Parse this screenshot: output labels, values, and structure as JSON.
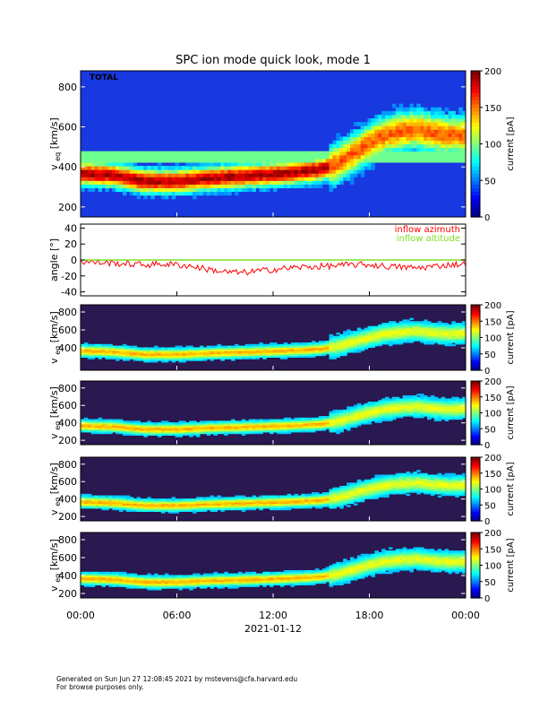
{
  "chart_data": {
    "type": "heatmap",
    "title": "SPC ion mode quick look, mode 1",
    "date": "2021-01-12",
    "x_tick_labels": [
      "00:00",
      "06:00",
      "12:00",
      "18:00",
      "00:00"
    ],
    "x_range_hours": [
      0,
      24
    ],
    "colors": {
      "line_azimuth": "#ff0000",
      "line_altitude": "#80e020"
    },
    "panels": [
      {
        "kind": "spectrogram",
        "label": "TOTAL",
        "ylabel": "v_eq [km/s]",
        "ylabel_main": "v",
        "ylabel_sub": "eq",
        "ylabel_unit": "[km/s]",
        "ylim": [
          150,
          880
        ],
        "yticks": [
          "200",
          "400",
          "600",
          "800"
        ],
        "colorbar": {
          "label": "current [pA]",
          "ticks": [
            "0",
            "50",
            "100",
            "150",
            "200"
          ],
          "range": [
            0,
            200
          ],
          "background": "blue"
        },
        "beam_center_kms": [
          [
            0,
            370
          ],
          [
            2,
            360
          ],
          [
            4,
            330
          ],
          [
            6,
            330
          ],
          [
            8,
            345
          ],
          [
            10,
            355
          ],
          [
            12,
            365
          ],
          [
            14,
            380
          ],
          [
            15,
            390
          ],
          [
            16,
            420
          ],
          [
            17,
            470
          ],
          [
            18,
            520
          ],
          [
            19,
            560
          ],
          [
            20,
            580
          ],
          [
            21,
            590
          ],
          [
            22,
            570
          ],
          [
            23,
            560
          ],
          [
            24,
            565
          ]
        ]
      },
      {
        "kind": "line",
        "ylabel": "angle [°]",
        "ylim": [
          -45,
          45
        ],
        "yticks": [
          "-40",
          "-20",
          "0",
          "20",
          "40"
        ],
        "legend": [
          "inflow azimuth",
          "inflow altitude"
        ],
        "legend_position": "top-right",
        "series": [
          {
            "name": "inflow azimuth",
            "x_hours": [
              0,
              1,
              2,
              3,
              4,
              5,
              6,
              7,
              8,
              9,
              10,
              11,
              12,
              13,
              14,
              15,
              16,
              17,
              18,
              19,
              20,
              21,
              22,
              23,
              24
            ],
            "values": [
              -2,
              -3,
              -4,
              -5,
              -6,
              -5,
              -6,
              -8,
              -12,
              -15,
              -16,
              -14,
              -12,
              -10,
              -9,
              -8,
              -7,
              -6,
              -6,
              -8,
              -9,
              -10,
              -8,
              -6,
              -5
            ]
          },
          {
            "name": "inflow altitude",
            "x_hours": [
              0,
              6,
              12,
              18,
              24
            ],
            "values": [
              0,
              0,
              0,
              0,
              0
            ]
          }
        ]
      },
      {
        "kind": "spectrogram",
        "ylabel": "v_eq [km/s]",
        "ylabel_main": "v",
        "ylabel_sub": "eq",
        "ylabel_unit": "[km/s]",
        "ylim": [
          150,
          880
        ],
        "yticks": [
          "400",
          "600",
          "800"
        ],
        "colorbar": {
          "label": "current [pA]",
          "ticks": [
            "0",
            "50",
            "100",
            "150",
            "200"
          ],
          "range": [
            0,
            200
          ],
          "background": "dark"
        },
        "beam_center_kms": [
          [
            0,
            370
          ],
          [
            2,
            360
          ],
          [
            4,
            330
          ],
          [
            6,
            330
          ],
          [
            8,
            345
          ],
          [
            10,
            355
          ],
          [
            12,
            365
          ],
          [
            14,
            380
          ],
          [
            15,
            390
          ],
          [
            16,
            420
          ],
          [
            17,
            470
          ],
          [
            18,
            520
          ],
          [
            19,
            560
          ],
          [
            20,
            580
          ],
          [
            21,
            590
          ],
          [
            22,
            570
          ],
          [
            23,
            560
          ],
          [
            24,
            565
          ]
        ]
      },
      {
        "kind": "spectrogram",
        "ylabel": "v_eq [km/s]",
        "ylabel_main": "v",
        "ylabel_sub": "eq",
        "ylabel_unit": "[km/s]",
        "ylim": [
          150,
          880
        ],
        "yticks": [
          "200",
          "400",
          "600",
          "800"
        ],
        "colorbar": {
          "label": "current [pA]",
          "ticks": [
            "0",
            "50",
            "100",
            "150",
            "200"
          ],
          "range": [
            0,
            200
          ],
          "background": "dark"
        },
        "beam_center_kms": [
          [
            0,
            370
          ],
          [
            2,
            360
          ],
          [
            4,
            330
          ],
          [
            6,
            330
          ],
          [
            8,
            345
          ],
          [
            10,
            355
          ],
          [
            12,
            365
          ],
          [
            14,
            380
          ],
          [
            15,
            390
          ],
          [
            16,
            420
          ],
          [
            17,
            470
          ],
          [
            18,
            520
          ],
          [
            19,
            560
          ],
          [
            20,
            580
          ],
          [
            21,
            590
          ],
          [
            22,
            570
          ],
          [
            23,
            560
          ],
          [
            24,
            565
          ]
        ]
      },
      {
        "kind": "spectrogram",
        "ylabel": "v_eq [km/s]",
        "ylabel_main": "v",
        "ylabel_sub": "eq",
        "ylabel_unit": "[km/s]",
        "ylim": [
          150,
          880
        ],
        "yticks": [
          "200",
          "400",
          "600",
          "800"
        ],
        "colorbar": {
          "label": "current [pA]",
          "ticks": [
            "0",
            "50",
            "100",
            "150",
            "200"
          ],
          "range": [
            0,
            200
          ],
          "background": "dark"
        },
        "beam_center_kms": [
          [
            0,
            370
          ],
          [
            2,
            360
          ],
          [
            4,
            330
          ],
          [
            6,
            330
          ],
          [
            8,
            345
          ],
          [
            10,
            355
          ],
          [
            12,
            365
          ],
          [
            14,
            380
          ],
          [
            15,
            390
          ],
          [
            16,
            420
          ],
          [
            17,
            470
          ],
          [
            18,
            520
          ],
          [
            19,
            560
          ],
          [
            20,
            580
          ],
          [
            21,
            590
          ],
          [
            22,
            570
          ],
          [
            23,
            560
          ],
          [
            24,
            565
          ]
        ]
      },
      {
        "kind": "spectrogram",
        "ylabel": "v_eq [km/s]",
        "ylabel_main": "v",
        "ylabel_sub": "eq",
        "ylabel_unit": "[km/s]",
        "ylim": [
          150,
          880
        ],
        "yticks": [
          "200",
          "400",
          "600",
          "800"
        ],
        "colorbar": {
          "label": "current [pA]",
          "ticks": [
            "0",
            "50",
            "100",
            "150",
            "200"
          ],
          "range": [
            0,
            200
          ],
          "background": "dark"
        },
        "beam_center_kms": [
          [
            0,
            370
          ],
          [
            2,
            360
          ],
          [
            4,
            330
          ],
          [
            6,
            330
          ],
          [
            8,
            345
          ],
          [
            10,
            355
          ],
          [
            12,
            365
          ],
          [
            14,
            380
          ],
          [
            15,
            390
          ],
          [
            16,
            420
          ],
          [
            17,
            470
          ],
          [
            18,
            520
          ],
          [
            19,
            560
          ],
          [
            20,
            580
          ],
          [
            21,
            590
          ],
          [
            22,
            570
          ],
          [
            23,
            560
          ],
          [
            24,
            565
          ]
        ]
      }
    ]
  },
  "footer": {
    "line1": "Generated on Sun Jun 27 12:08:45 2021 by mstevens@cfa.harvard.edu",
    "line2": "For browse purposes only."
  }
}
